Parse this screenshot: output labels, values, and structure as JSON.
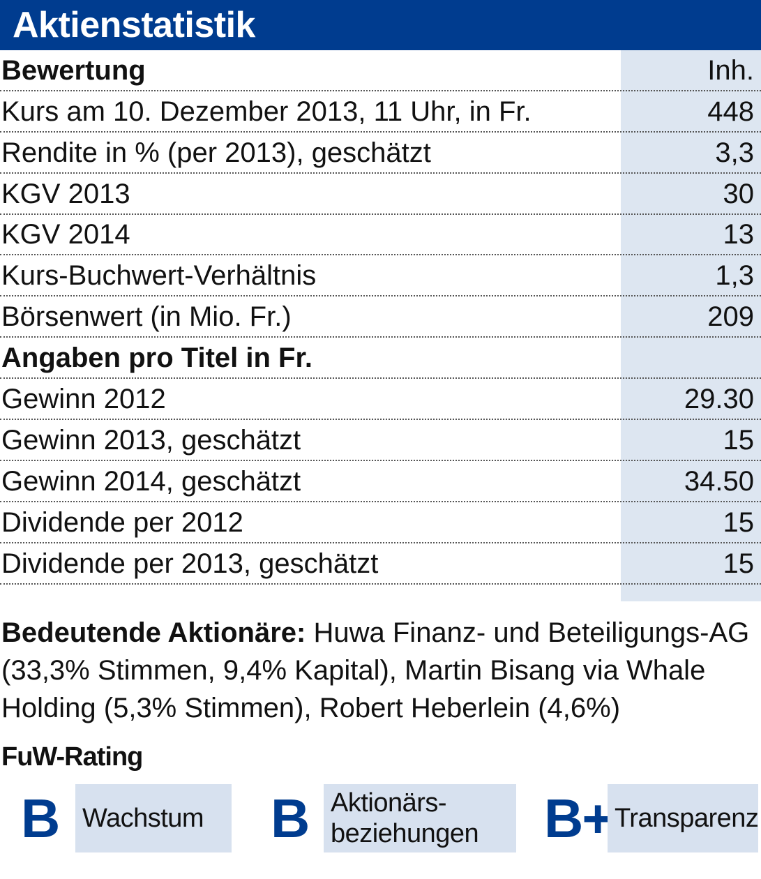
{
  "title": "Aktienstatistik",
  "sections": [
    {
      "heading": "Bewertung",
      "heading_value": "Inh.",
      "rows": [
        {
          "label": "Kurs am 10. Dezember 2013, 11 Uhr, in Fr.",
          "value": "448"
        },
        {
          "label": "Rendite in % (per 2013), geschätzt",
          "value": "3,3"
        },
        {
          "label": "KGV 2013",
          "value": "30"
        },
        {
          "label": "KGV 2014",
          "value": "13"
        },
        {
          "label": "Kurs-Buchwert-Verhältnis",
          "value": "1,3"
        },
        {
          "label": "Börsenwert (in Mio. Fr.)",
          "value": "209"
        }
      ]
    },
    {
      "heading": "Angaben pro Titel in Fr.",
      "heading_value": "",
      "rows": [
        {
          "label": "Gewinn 2012",
          "value": "29.30"
        },
        {
          "label": "Gewinn 2013, geschätzt",
          "value": "15"
        },
        {
          "label": "Gewinn 2014, geschätzt",
          "value": "34.50"
        },
        {
          "label": "Dividende per 2012",
          "value": "15"
        },
        {
          "label": "Dividende per 2013, geschätzt",
          "value": "15"
        }
      ]
    }
  ],
  "shareholders": {
    "label": "Bedeutende Aktionäre:",
    "text": " Huwa Finanz- und Beteiligungs-AG (33,3% Stimmen, 9,4% Kapital), Martin Bisang via Whale Holding (5,3% Stimmen), Robert Heberlein (4,6%)"
  },
  "rating": {
    "title": "FuW-Rating",
    "items": [
      {
        "grade": "B",
        "label_line1": "Wachstum",
        "label_line2": ""
      },
      {
        "grade": "B",
        "label_line1": "Aktionärs-",
        "label_line2": "beziehungen"
      },
      {
        "grade": "B+",
        "label_line1": "Transparenz",
        "label_line2": ""
      }
    ]
  },
  "colors": {
    "header": "#003c8f",
    "shade": "#dde6f1",
    "rating_box": "#d7e1ef",
    "grade": "#003c8f"
  }
}
